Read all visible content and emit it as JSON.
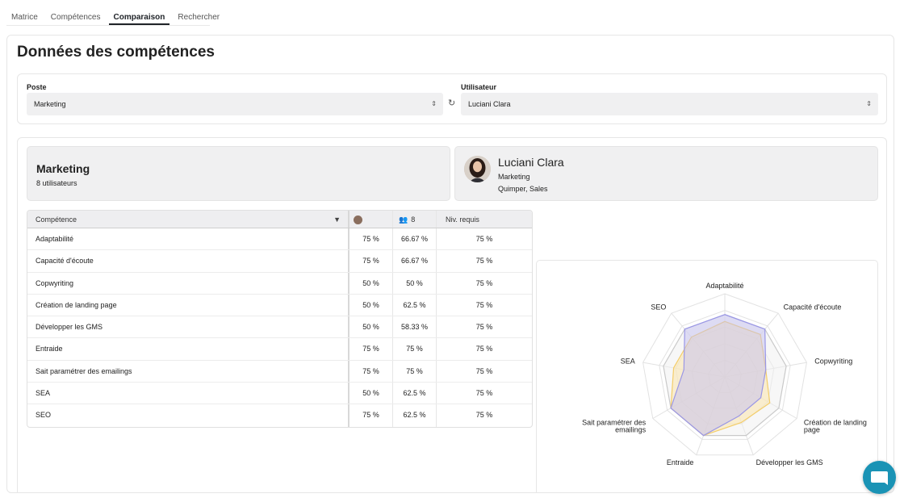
{
  "tabs": [
    "Matrice",
    "Compétences",
    "Comparaison",
    "Rechercher"
  ],
  "active_tab": 2,
  "page_title": "Données des compétences",
  "filters": {
    "poste_label": "Poste",
    "poste_value": "Marketing",
    "user_label": "Utilisateur",
    "user_value": "Luciani Clara",
    "select_arrows": "⇕",
    "refresh_icon": "↻"
  },
  "position_card": {
    "title": "Marketing",
    "subtitle": "8 utilisateurs"
  },
  "user_card": {
    "name": "Luciani Clara",
    "department": "Marketing",
    "location": "Quimper, Sales"
  },
  "table": {
    "headers": {
      "skill": "Compétence",
      "user_count": "8",
      "required": "Niv. requis"
    },
    "sort_icon": "▼",
    "users_icon": "👥",
    "rows": [
      {
        "skill": "Adaptabilité",
        "user": "75 %",
        "group": "66.67 %",
        "required": "75 %"
      },
      {
        "skill": "Capacité d'écoute",
        "user": "75 %",
        "group": "66.67 %",
        "required": "75 %"
      },
      {
        "skill": "Copwyriting",
        "user": "50 %",
        "group": "50 %",
        "required": "75 %"
      },
      {
        "skill": "Création de landing page",
        "user": "50 %",
        "group": "62.5 %",
        "required": "75 %"
      },
      {
        "skill": "Développer les GMS",
        "user": "50 %",
        "group": "58.33 %",
        "required": "75 %"
      },
      {
        "skill": "Entraide",
        "user": "75 %",
        "group": "75 %",
        "required": "75 %"
      },
      {
        "skill": "Sait paramétrer des emailings",
        "user": "75 %",
        "group": "75 %",
        "required": "75 %"
      },
      {
        "skill": "SEA",
        "user": "50 %",
        "group": "62.5 %",
        "required": "75 %"
      },
      {
        "skill": "SEO",
        "user": "75 %",
        "group": "62.5 %",
        "required": "75 %"
      }
    ]
  },
  "chart_data": {
    "type": "radar",
    "max": 100,
    "rings": 5,
    "axes": [
      "Adaptabilité",
      "Capacité d'écoute",
      "Copwyriting",
      "Création de landing page",
      "Développer les GMS",
      "Entraide",
      "Sait paramétrer des emailings",
      "SEA",
      "SEO"
    ],
    "series": [
      {
        "values": [
          75,
          75,
          75,
          75,
          75,
          75,
          75,
          75,
          75
        ],
        "stroke": "#c9c9c9",
        "fill": "#f0f0f0"
      },
      {
        "values": [
          66.67,
          66.67,
          50,
          62.5,
          58.33,
          75,
          75,
          62.5,
          62.5
        ],
        "stroke": "#f3cd6a",
        "fill": "#fbe3a6"
      },
      {
        "values": [
          75,
          75,
          50,
          50,
          50,
          75,
          75,
          50,
          75
        ],
        "stroke": "#9a97e6",
        "fill": "#c3c0f0"
      }
    ]
  }
}
